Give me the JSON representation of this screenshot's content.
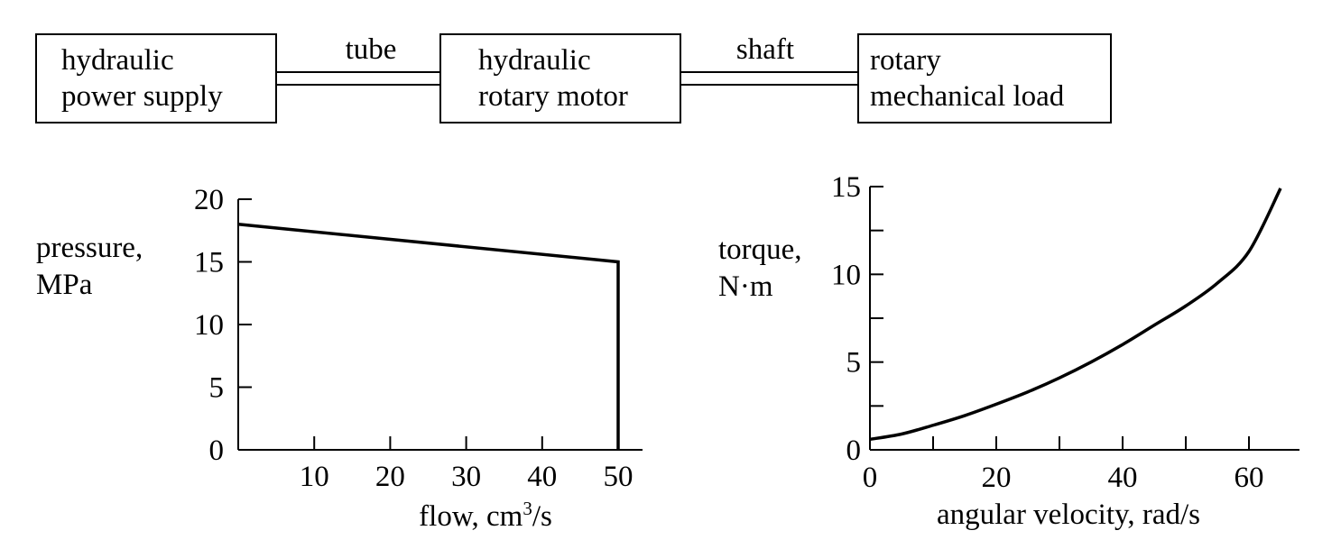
{
  "diagram": {
    "blocks": [
      {
        "line1": "hydraulic",
        "line2": "power supply"
      },
      {
        "line1": "hydraulic",
        "line2": "rotary motor"
      },
      {
        "line1": "rotary",
        "line2": "mechanical load"
      }
    ],
    "connectors": [
      {
        "label": "tube"
      },
      {
        "label": "shaft"
      }
    ]
  },
  "chart_data": [
    {
      "type": "line",
      "title": "",
      "ylabel_line1": "pressure,",
      "ylabel_line2": "MPa",
      "xlabel": "flow, cm",
      "xlabel_sup": "3",
      "xlabel_tail": "/s",
      "xlim": [
        0,
        50
      ],
      "ylim": [
        0,
        20
      ],
      "x_ticks": [
        10,
        20,
        30,
        40,
        50
      ],
      "y_ticks": [
        0,
        5,
        10,
        15,
        20
      ],
      "grid": false,
      "series": [
        {
          "x": [
            0,
            50,
            50
          ],
          "y": [
            18,
            15,
            0
          ]
        }
      ]
    },
    {
      "type": "line",
      "title": "",
      "ylabel_line1": "torque,",
      "ylabel_line2": "N·m",
      "xlabel": "angular velocity, rad/s",
      "xlim": [
        0,
        65
      ],
      "ylim": [
        0,
        15
      ],
      "x_ticks": [
        0,
        20,
        40,
        60
      ],
      "x_minor_ticks": [
        10,
        30,
        50
      ],
      "y_ticks": [
        0,
        5,
        10,
        15
      ],
      "y_minor_ticks": [
        2.5,
        7.5,
        12.5
      ],
      "grid": false,
      "series": [
        {
          "x": [
            0,
            5,
            10,
            15,
            20,
            25,
            30,
            35,
            40,
            45,
            50,
            55,
            60,
            65
          ],
          "y": [
            0.6,
            0.9,
            1.4,
            1.95,
            2.6,
            3.3,
            4.1,
            5.0,
            6.0,
            7.1,
            8.2,
            9.5,
            11.3,
            14.9
          ]
        }
      ]
    }
  ]
}
